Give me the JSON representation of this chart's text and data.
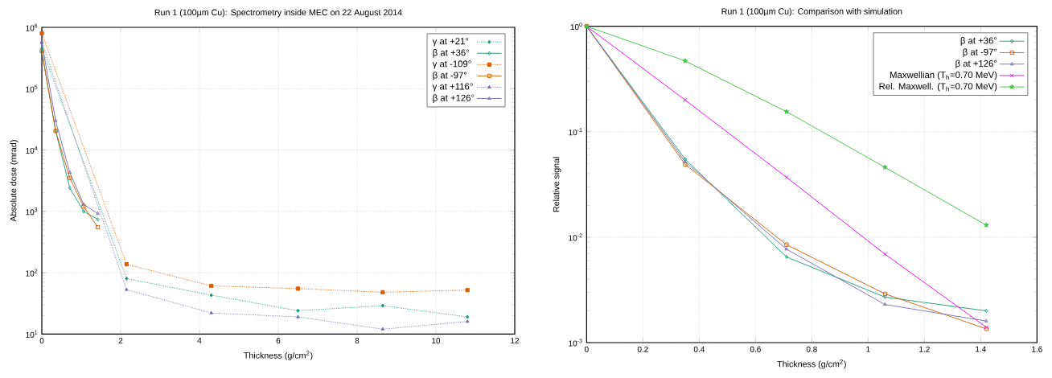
{
  "chart_data": [
    {
      "type": "line",
      "title": "Run 1 (100µm Cu): Spectrometry inside MEC on 22 August 2014",
      "xlabel": "Thickness (g/cm$^{2}$)",
      "ylabel": "Absolute dose (mrad)",
      "log": "y",
      "grid": true,
      "legend": "top right",
      "xlim": [
        0,
        12
      ],
      "xticks": [
        0,
        2,
        4,
        6,
        8,
        10,
        12
      ],
      "ylim": [
        10,
        1000000
      ],
      "yticks": [
        {
          "value": 10,
          "label": "10$^{1}$"
        },
        {
          "value": 100,
          "label": "10$^{2}$"
        },
        {
          "value": 1000,
          "label": "10$^{3}$"
        },
        {
          "value": 10000,
          "label": "10$^{4}$"
        },
        {
          "value": 100000,
          "label": "10$^{5}$"
        },
        {
          "value": 1000000,
          "label": "10$^{6}$"
        }
      ],
      "series": [
        {
          "name": "γ at +21°",
          "color": "#1b9e77",
          "marker": "diamond",
          "line_style": "dotted",
          "x": [
            0,
            2.15,
            4.3,
            6.5,
            8.65,
            10.8
          ],
          "values": [
            450000,
            80,
            43,
            24,
            29,
            19
          ]
        },
        {
          "name": "β at +36°",
          "color": "#1b9e77",
          "marker": "diamond",
          "line_style": "solid",
          "x": [
            0,
            0.35,
            0.71,
            1.06,
            1.42
          ],
          "values": [
            400000,
            20500,
            2400,
            1000,
            740
          ]
        },
        {
          "name": "γ at -109°",
          "color": "#d95f02",
          "marker": "square",
          "line_style": "dotted",
          "x": [
            0,
            2.15,
            4.3,
            6.5,
            8.65,
            10.8
          ],
          "values": [
            800000,
            137,
            61,
            55,
            48,
            52
          ]
        },
        {
          "name": "β at -97°",
          "color": "#d95f02",
          "marker": "square",
          "line_style": "solid",
          "x": [
            0,
            0.35,
            0.71,
            1.06,
            1.42
          ],
          "values": [
            410000,
            20500,
            3500,
            1200,
            550
          ]
        },
        {
          "name": "γ at +116°",
          "color": "#7570b3",
          "marker": "triangle",
          "line_style": "dotted",
          "x": [
            0,
            2.15,
            4.3,
            6.5,
            8.65,
            10.8
          ],
          "values": [
            580000,
            53,
            22,
            19,
            12,
            16
          ]
        },
        {
          "name": "β at +126°",
          "color": "#7570b3",
          "marker": "triangle",
          "line_style": "solid",
          "x": [
            0,
            0.35,
            0.71,
            1.06,
            1.42
          ],
          "values": [
            560000,
            30000,
            4300,
            1300,
            920
          ]
        }
      ]
    },
    {
      "type": "line",
      "title": "Run 1 (100µm Cu): Comparison with simulation",
      "xlabel": "Thickness (g/cm$^{2}$)",
      "ylabel": "Relative signal",
      "log": "y",
      "grid": true,
      "legend": "top right",
      "xlim": [
        0,
        1.6
      ],
      "xticks": [
        0,
        0.2,
        0.4,
        0.6,
        0.8,
        1,
        1.2,
        1.4,
        1.6
      ],
      "ylim": [
        0.001,
        1
      ],
      "yticks": [
        {
          "value": 0.001,
          "label": "10$^{-3}$"
        },
        {
          "value": 0.01,
          "label": "10$^{-2}$"
        },
        {
          "value": 0.1,
          "label": "10$^{-1}$"
        },
        {
          "value": 1,
          "label": "10$^{0}$"
        }
      ],
      "x": [
        0,
        0.35,
        0.71,
        1.06,
        1.42
      ],
      "series": [
        {
          "name": "β at +36°",
          "color": "#1b9e77",
          "marker": "diamond",
          "values": [
            1,
            0.055,
            0.0065,
            0.0027,
            0.002
          ]
        },
        {
          "name": "β at -97°",
          "color": "#d95f02",
          "marker": "square",
          "values": [
            1,
            0.049,
            0.0085,
            0.0029,
            0.00135
          ]
        },
        {
          "name": "β at +126°",
          "color": "#7570b3",
          "marker": "triangle",
          "values": [
            1,
            0.052,
            0.0077,
            0.0023,
            0.0016
          ]
        },
        {
          "name": "Maxwellian (T$_{h}$=0.70 MeV)",
          "color": "#ff00ff",
          "marker": "cross",
          "values": [
            1,
            0.2,
            0.037,
            0.0069,
            0.0014
          ]
        },
        {
          "name": "Rel. Maxwell. (T$_{h}$=0.70 MeV)",
          "color": "#40c840",
          "marker": "star",
          "values": [
            1,
            0.47,
            0.155,
            0.046,
            0.013
          ]
        }
      ]
    }
  ]
}
